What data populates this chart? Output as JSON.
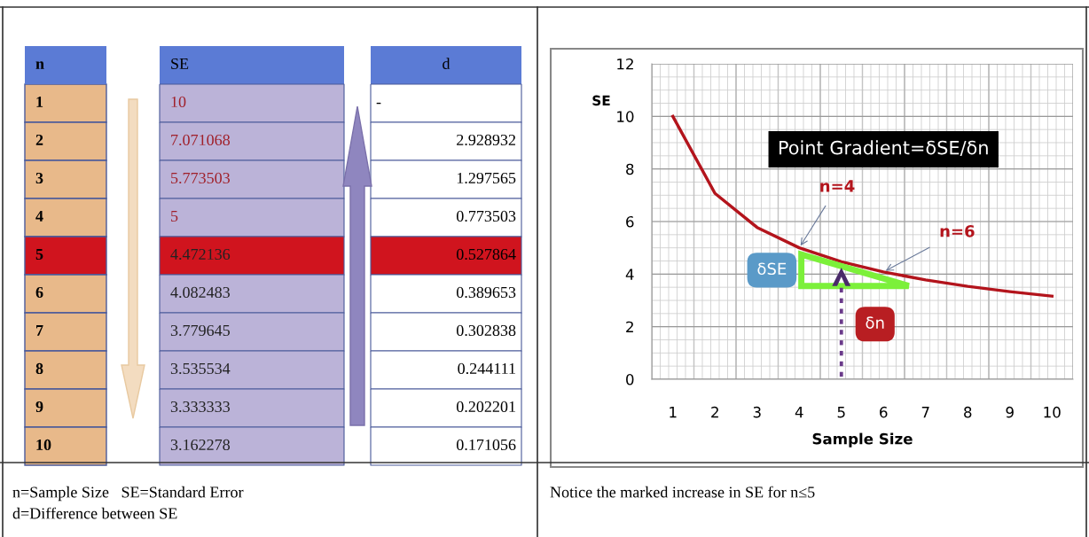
{
  "chart_data": [
    {
      "type": "heatmap",
      "ylabel": "n",
      "categories": [
        "SE",
        "d"
      ],
      "y_categories": [
        "1",
        "2",
        "3",
        "4",
        "5",
        "6",
        "7",
        "8",
        "9",
        "10"
      ],
      "cells": [
        [
          10,
          null
        ],
        [
          7.071068,
          2.928932
        ],
        [
          5.773503,
          1.297565
        ],
        [
          5,
          0.773503
        ],
        [
          4.472136,
          0.527864
        ],
        [
          4.082483,
          0.389653
        ],
        [
          3.779645,
          0.302838
        ],
        [
          3.535534,
          0.244111
        ],
        [
          3.333333,
          0.202201
        ],
        [
          3.162278,
          0.171056
        ]
      ],
      "cell_labels": [
        [
          "10",
          "-"
        ],
        [
          "7.071068",
          "2.928932"
        ],
        [
          "5.773503",
          "1.297565"
        ],
        [
          "5",
          "0.773503"
        ],
        [
          "4.472136",
          "0.527864"
        ],
        [
          "4.082483",
          "0.389653"
        ],
        [
          "3.779645",
          "0.302838"
        ],
        [
          "3.535534",
          "0.244111"
        ],
        [
          "3.333333",
          "0.202201"
        ],
        [
          "3.162278",
          "0.171056"
        ]
      ],
      "colors": [
        [
          "#bbb3d8",
          "#ffffff"
        ],
        [
          "#bbb3d8",
          "#ffffff"
        ],
        [
          "#bbb3d8",
          "#ffffff"
        ],
        [
          "#bbb3d8",
          "#ffffff"
        ],
        [
          "#d0141e",
          "#d0141e"
        ],
        [
          "#bbb3d8",
          "#ffffff"
        ],
        [
          "#bbb3d8",
          "#ffffff"
        ],
        [
          "#bbb3d8",
          "#ffffff"
        ],
        [
          "#bbb3d8",
          "#ffffff"
        ],
        [
          "#bbb3d8",
          "#ffffff"
        ]
      ],
      "annotations": [
        "n=Sample Size   SE=Standard Error",
        "d=Difference between SE"
      ]
    },
    {
      "type": "line",
      "xlabel": "Sample Size",
      "ylabel": "SE",
      "categories": [
        "1",
        "2",
        "3",
        "4",
        "5",
        "6",
        "7",
        "8",
        "9",
        "10"
      ],
      "series": [
        {
          "color": "#b3141c",
          "values": [
            10,
            7.071068,
            5.773503,
            5,
            4.472136,
            4.082483,
            3.779645,
            3.535534,
            3.333333,
            3.162278
          ]
        }
      ],
      "ylim": [
        0,
        12
      ],
      "yticks": [
        0,
        2,
        4,
        6,
        8,
        10,
        12
      ],
      "grid": true,
      "marker": "none",
      "line_style": "solid",
      "annotations": [
        "Point Gradient=δSE/δn",
        {
          "text": "n=4",
          "x": "4",
          "y": 5
        },
        {
          "text": "n=6",
          "x": "6",
          "y": 4.082483
        },
        "δSE",
        "δn",
        "Notice the marked increase in SE for n≤5"
      ]
    }
  ]
}
